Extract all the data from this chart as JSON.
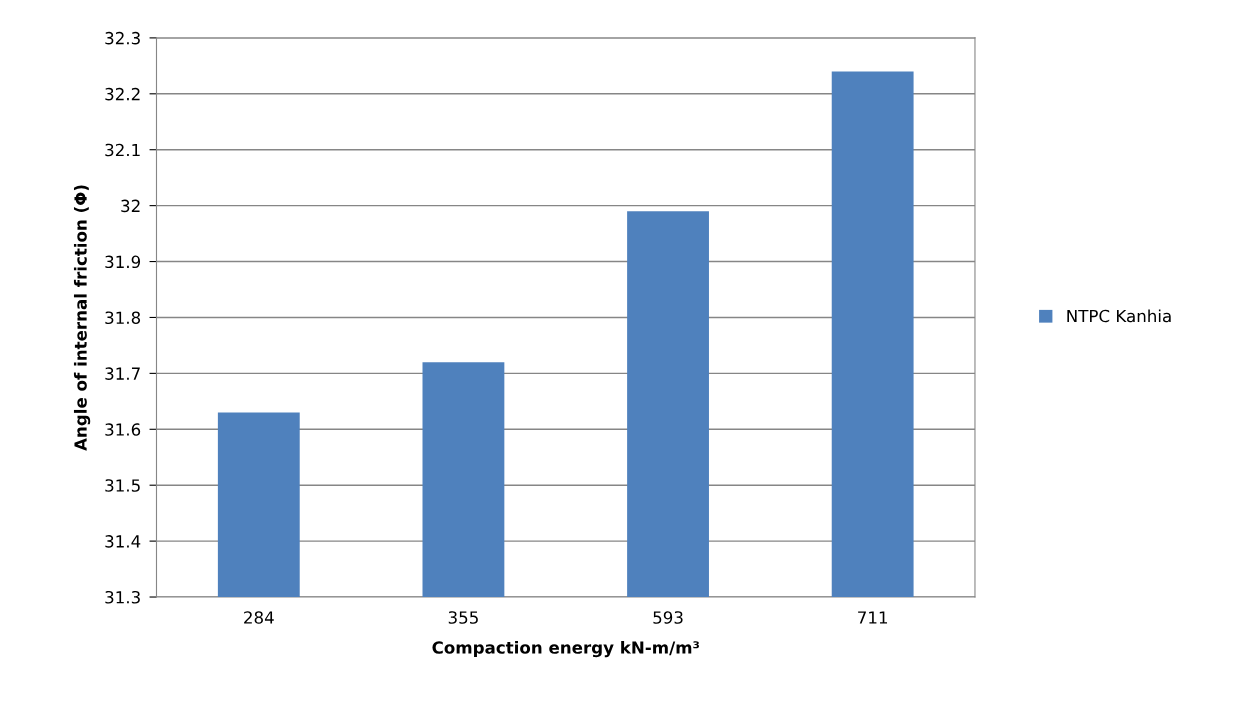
{
  "chart_data": {
    "type": "bar",
    "xlabel": "Compaction energy kN-m/m³",
    "ylabel": "Angle of internal friction (Φ)",
    "categories": [
      "284",
      "355",
      "593",
      "711"
    ],
    "series": [
      {
        "name": "NTPC Kanhia",
        "color": "#4f81bd",
        "values": [
          31.63,
          31.72,
          31.99,
          32.24
        ]
      }
    ],
    "ylim": [
      31.3,
      32.3
    ],
    "yticks": [
      {
        "value": 31.3,
        "label": "31.3"
      },
      {
        "value": 31.4,
        "label": "31.4"
      },
      {
        "value": 31.5,
        "label": "31.5"
      },
      {
        "value": 31.6,
        "label": "31.6"
      },
      {
        "value": 31.7,
        "label": "31.7"
      },
      {
        "value": 31.8,
        "label": "31.8"
      },
      {
        "value": 31.9,
        "label": "31.9"
      },
      {
        "value": 32,
        "label": "32"
      },
      {
        "value": 32.1,
        "label": "32.1"
      },
      {
        "value": 32.2,
        "label": "32.2"
      },
      {
        "value": 32.3,
        "label": "32.3"
      }
    ],
    "grid": "y",
    "legend": "right"
  }
}
